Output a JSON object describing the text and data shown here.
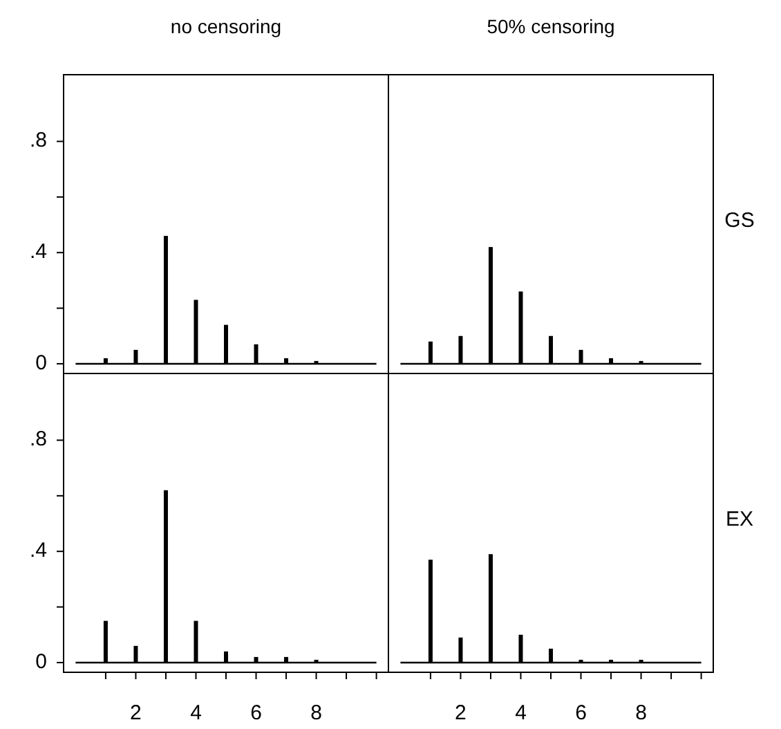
{
  "chart_data": [
    {
      "type": "bar",
      "title": "no censoring",
      "x": [
        1,
        2,
        3,
        4,
        5,
        6,
        7,
        8
      ],
      "values": [
        0.02,
        0.05,
        0.46,
        0.23,
        0.14,
        0.07,
        0.02,
        0.01
      ],
      "color": "#000000",
      "xlim": [
        -0.4,
        10.4
      ],
      "ylim": [
        -0.035,
        1.04
      ],
      "yticks": [
        0,
        {
          "value": 0.2,
          "label": null
        },
        {
          "value": 0.4,
          "label": ".4"
        },
        {
          "value": 0.6,
          "label": null
        },
        {
          "value": 0.8,
          "label": ".8"
        }
      ],
      "ref_lines": [
        {
          "axis": "y",
          "value": 0
        }
      ],
      "tick_labels": "y"
    },
    {
      "type": "bar",
      "title": "50% censoring",
      "x": [
        1,
        2,
        3,
        4,
        5,
        6,
        7,
        8
      ],
      "values": [
        0.08,
        0.1,
        0.42,
        0.26,
        0.1,
        0.05,
        0.02,
        0.01
      ],
      "color": "#000000",
      "xlim": [
        -0.4,
        10.4
      ],
      "ylim": [
        -0.035,
        1.04
      ],
      "ref_lines": [
        {
          "axis": "y",
          "value": 0
        }
      ],
      "annotations": [
        "GS"
      ],
      "tick_labels": false
    },
    {
      "type": "bar",
      "x": [
        1,
        2,
        3,
        4,
        5,
        6,
        7,
        8
      ],
      "values": [
        0.15,
        0.06,
        0.62,
        0.15,
        0.04,
        0.02,
        0.02,
        0.01
      ],
      "color": "#000000",
      "xlim": [
        -0.4,
        10.4
      ],
      "ylim": [
        -0.035,
        1.04
      ],
      "xticks": [
        {
          "value": 1,
          "label": null
        },
        2,
        {
          "value": 3,
          "label": null
        },
        4,
        {
          "value": 5,
          "label": null
        },
        6,
        {
          "value": 7,
          "label": null
        },
        8,
        {
          "value": 9,
          "label": null
        },
        {
          "value": 10,
          "label": null
        }
      ],
      "yticks": [
        0,
        {
          "value": 0.2,
          "label": null
        },
        {
          "value": 0.4,
          "label": ".4"
        },
        {
          "value": 0.6,
          "label": null
        },
        {
          "value": 0.8,
          "label": ".8"
        }
      ],
      "ref_lines": [
        {
          "axis": "y",
          "value": 0
        }
      ]
    },
    {
      "type": "bar",
      "x": [
        1,
        2,
        3,
        4,
        5,
        6,
        7,
        8
      ],
      "values": [
        0.37,
        0.09,
        0.39,
        0.1,
        0.05,
        0.01,
        0.01,
        0.01
      ],
      "color": "#000000",
      "xlim": [
        -0.4,
        10.4
      ],
      "ylim": [
        -0.035,
        1.04
      ],
      "xticks": [
        {
          "value": 1,
          "label": null
        },
        2,
        {
          "value": 3,
          "label": null
        },
        4,
        {
          "value": 5,
          "label": null
        },
        6,
        {
          "value": 7,
          "label": null
        },
        8,
        {
          "value": 9,
          "label": null
        },
        {
          "value": 10,
          "label": null
        }
      ],
      "ref_lines": [
        {
          "axis": "y",
          "value": 0
        }
      ],
      "annotations": [
        "EX"
      ],
      "tick_labels": "x"
    }
  ]
}
